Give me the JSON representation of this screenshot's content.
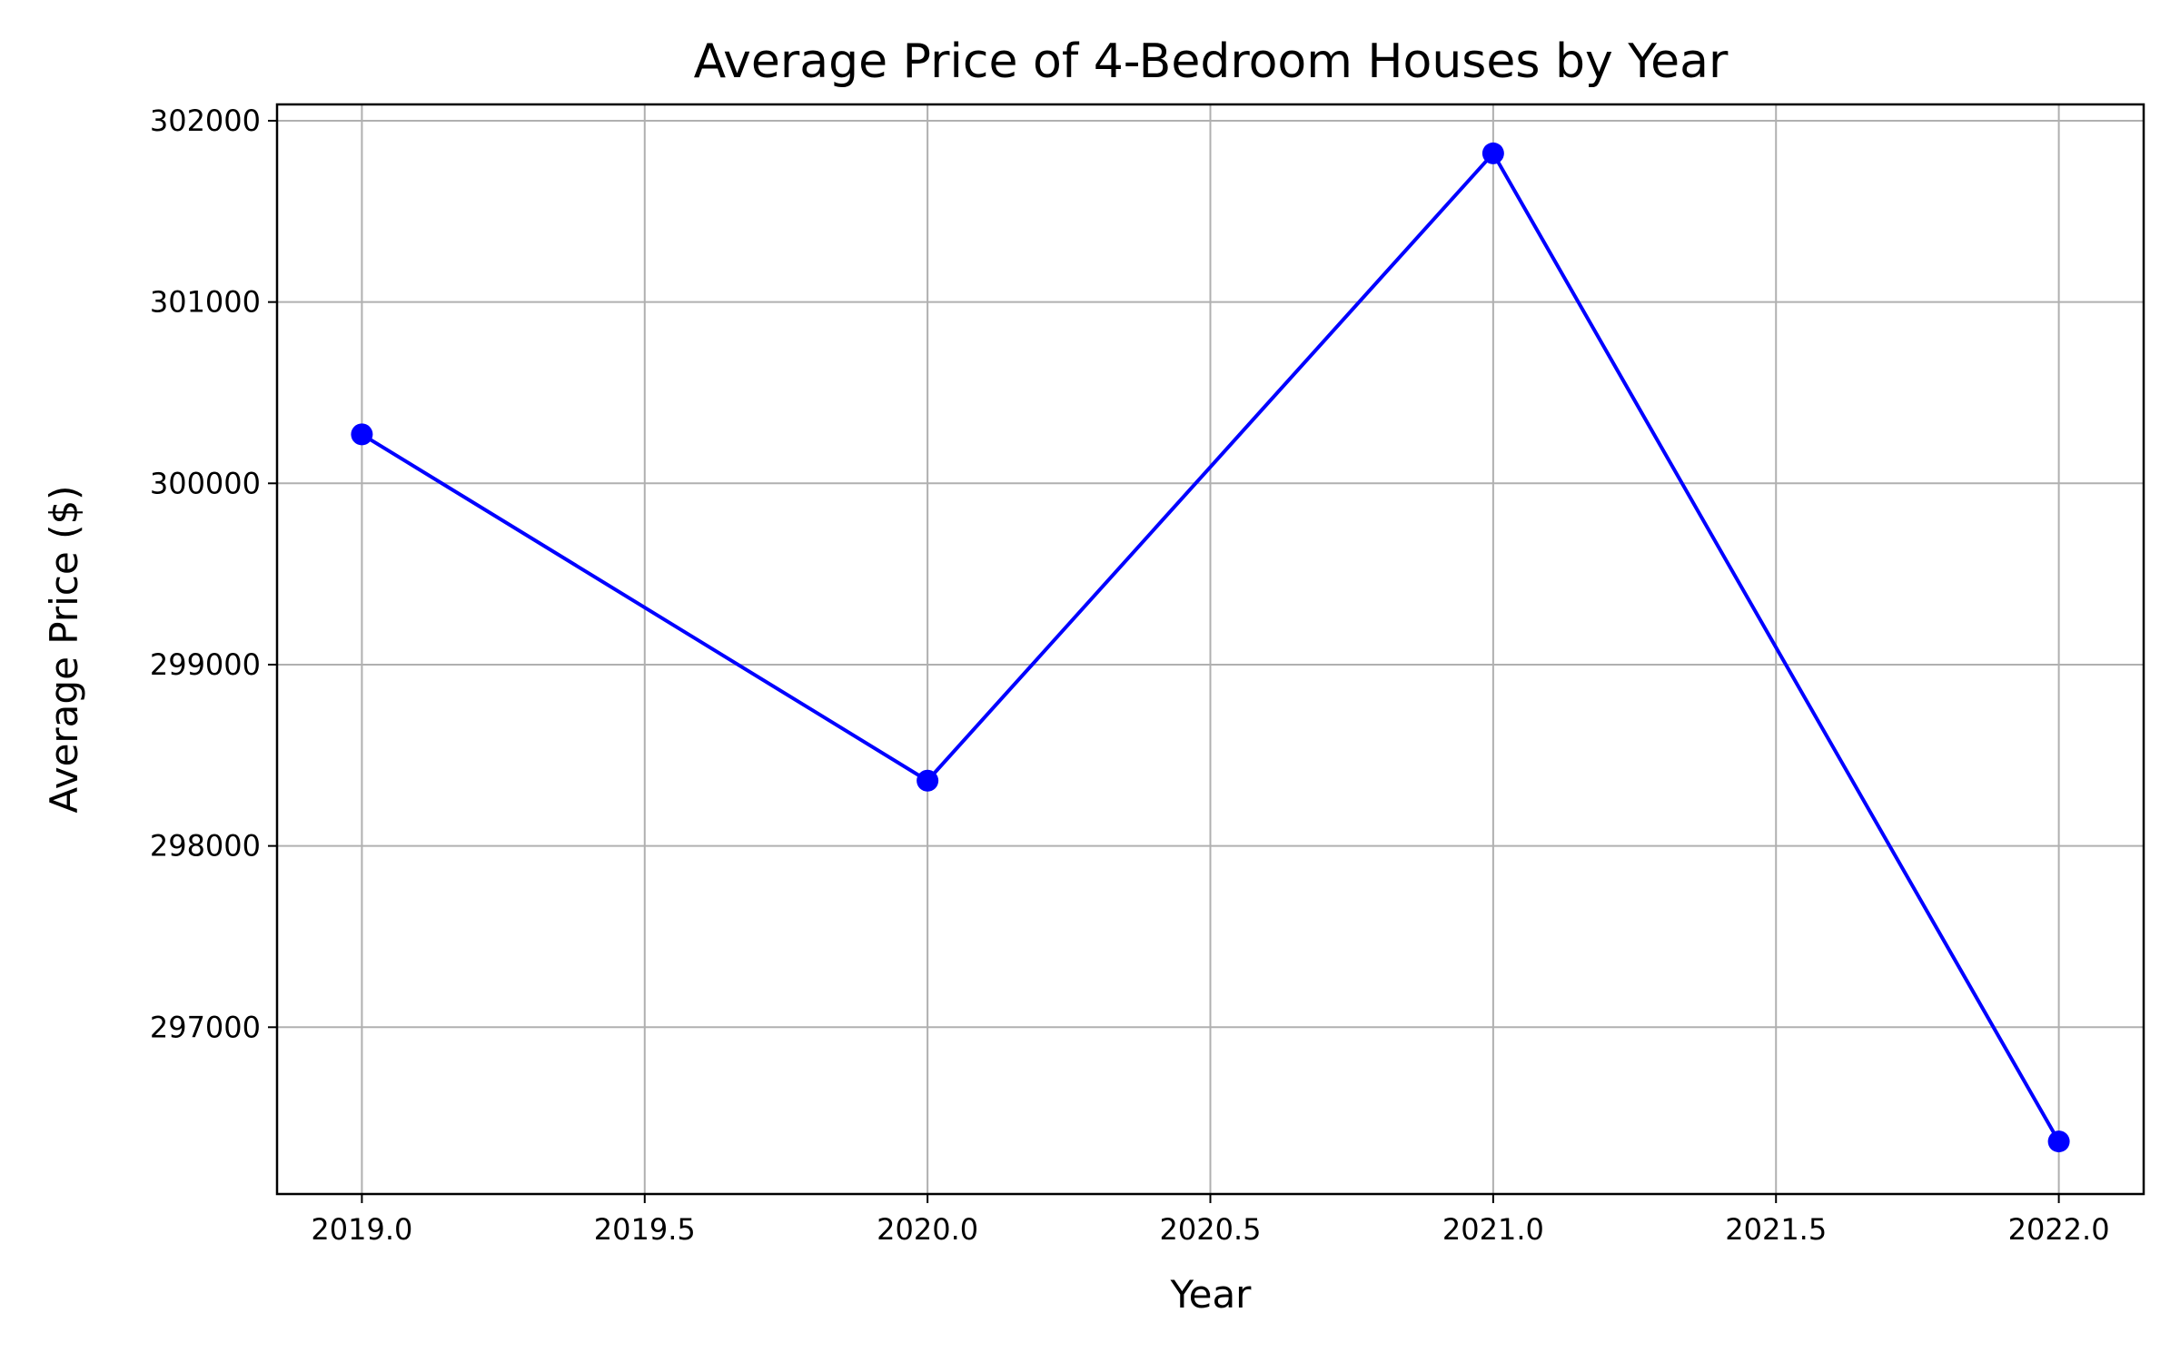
{
  "chart_data": {
    "type": "line",
    "title": "Average Price of 4-Bedroom Houses by Year",
    "xlabel": "Year",
    "ylabel": "Average Price ($)",
    "x": [
      2019,
      2020,
      2021,
      2022
    ],
    "series": [
      {
        "values": [
          300270,
          298360,
          301820,
          296370
        ],
        "color": "#0000ff",
        "marker": "circle"
      }
    ],
    "xlim": [
      2018.85,
      2022.15
    ],
    "ylim": [
      296080,
      302090
    ],
    "xticks": [
      2019.0,
      2019.5,
      2020.0,
      2020.5,
      2021.0,
      2021.5,
      2022.0
    ],
    "xtick_labels": [
      "2019.0",
      "2019.5",
      "2020.0",
      "2020.5",
      "2021.0",
      "2021.5",
      "2022.0"
    ],
    "yticks": [
      297000,
      298000,
      299000,
      300000,
      301000,
      302000
    ],
    "ytick_labels": [
      "297000",
      "298000",
      "299000",
      "300000",
      "301000",
      "302000"
    ],
    "grid": true,
    "grid_color": "#b0b0b0",
    "line_color": "#0000ff"
  }
}
